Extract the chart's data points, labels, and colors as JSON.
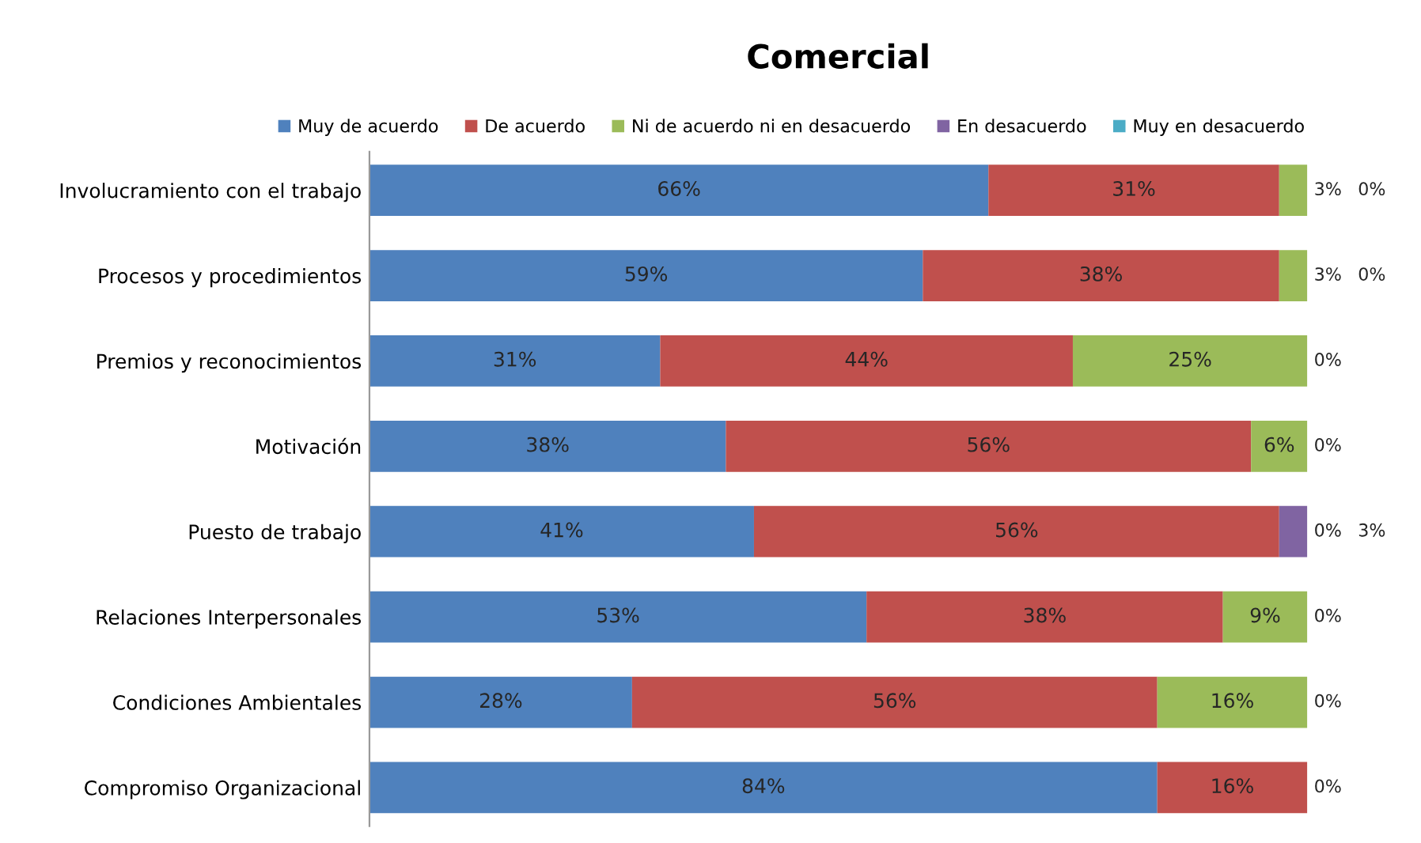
{
  "chart_data": {
    "type": "bar",
    "orientation": "horizontal",
    "stacked": true,
    "title": "Comercial",
    "categories": [
      "Involucramiento con el trabajo",
      "Procesos y procedimientos",
      "Premios y reconocimientos",
      "Motivación",
      "Puesto de trabajo",
      "Relaciones Interpersonales",
      "Condiciones Ambientales",
      "Compromiso Organizacional"
    ],
    "series": [
      {
        "name": "Muy de acuerdo",
        "color": "#4f81bd",
        "values": [
          66,
          59,
          31,
          38,
          41,
          53,
          28,
          84
        ],
        "value_labels": [
          "66%",
          "59%",
          "31%",
          "38%",
          "41%",
          "53%",
          "28%",
          "84%"
        ]
      },
      {
        "name": "De acuerdo",
        "color": "#c0504d",
        "values": [
          31,
          38,
          44,
          56,
          56,
          38,
          56,
          16
        ],
        "value_labels": [
          "31%",
          "38%",
          "44%",
          "56%",
          "56%",
          "38%",
          "56%",
          "16%"
        ]
      },
      {
        "name": "Ni de acuerdo ni en desacuerdo",
        "color": "#9bbb59",
        "values": [
          3,
          3,
          25,
          6,
          0,
          9,
          16,
          0
        ],
        "value_labels": [
          "3%",
          "3%",
          "25%",
          "6%",
          "0%",
          "9%",
          "16%",
          null
        ]
      },
      {
        "name": "En desacuerdo",
        "color": "#8064a2",
        "values": [
          0,
          0,
          0,
          0,
          3,
          0,
          0,
          0
        ],
        "value_labels": [
          "0%",
          "0%",
          "0%",
          "0%",
          "3%",
          "0%",
          "0%",
          "0%"
        ]
      },
      {
        "name": "Muy en desacuerdo",
        "color": "#4bacc6",
        "values": [
          0,
          0,
          0,
          0,
          0,
          0,
          0,
          0
        ],
        "value_labels": [
          null,
          null,
          null,
          null,
          null,
          null,
          null,
          null
        ]
      }
    ],
    "legend": "top",
    "grid": false,
    "tick_labels": "y"
  }
}
